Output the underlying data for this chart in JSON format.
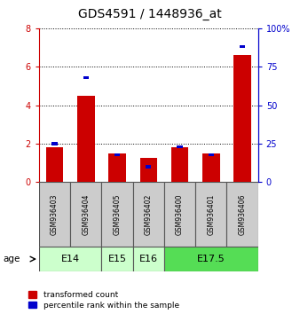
{
  "title": "GDS4591 / 1448936_at",
  "samples": [
    "GSM936403",
    "GSM936404",
    "GSM936405",
    "GSM936402",
    "GSM936400",
    "GSM936401",
    "GSM936406"
  ],
  "transformed_count": [
    1.82,
    4.5,
    1.5,
    1.25,
    1.82,
    1.5,
    6.6
  ],
  "percentile_rank": [
    25,
    68,
    18,
    10,
    23,
    18,
    88
  ],
  "left_ylim": [
    0,
    8
  ],
  "right_ylim": [
    0,
    100
  ],
  "left_yticks": [
    0,
    2,
    4,
    6,
    8
  ],
  "right_yticks": [
    0,
    25,
    50,
    75,
    100
  ],
  "right_yticklabels": [
    "0",
    "25",
    "50",
    "75",
    "100%"
  ],
  "left_color": "#cc0000",
  "right_color": "#0000cc",
  "age_groups": [
    {
      "label": "E14",
      "start": 0,
      "end": 2,
      "color": "#ccffcc"
    },
    {
      "label": "E15",
      "start": 2,
      "end": 3,
      "color": "#ccffcc"
    },
    {
      "label": "E16",
      "start": 3,
      "end": 4,
      "color": "#ccffcc"
    },
    {
      "label": "E17.5",
      "start": 4,
      "end": 7,
      "color": "#55dd55"
    }
  ],
  "sample_box_color": "#cccccc",
  "sample_box_edge": "#555555",
  "bg_color": "#ffffff",
  "legend_red_label": "transformed count",
  "legend_blue_label": "percentile rank within the sample",
  "age_label": "age",
  "title_fontsize": 10,
  "tick_fontsize": 7,
  "sample_fontsize": 5.5,
  "age_group_fontsize": 8,
  "legend_fontsize": 6.5,
  "red_bar_width": 0.55,
  "blue_square_size": 0.18
}
